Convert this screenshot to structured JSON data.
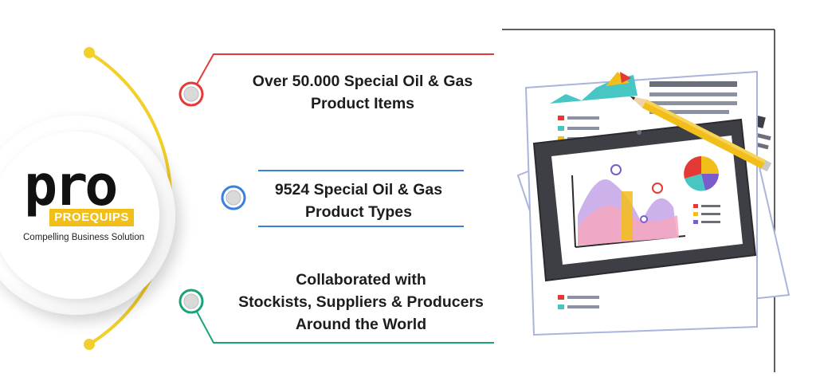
{
  "logo": {
    "wordmark": "pro",
    "badge": "PROEQUIPS",
    "tagline": "Compelling Business Solution"
  },
  "features": [
    {
      "lines": [
        "Over 50.000 Special Oil & Gas",
        "Product Items"
      ],
      "accent": "#e53935"
    },
    {
      "lines": [
        "9524  Special Oil & Gas",
        "Product Types"
      ],
      "accent": "#3b7fe0"
    },
    {
      "lines": [
        "Collaborated with",
        "Stockists, Suppliers & Producers",
        "Around the World"
      ],
      "accent": "#1aa37a"
    }
  ],
  "colors": {
    "timeline": "#f2cf2a",
    "brand_yellow": "#f2be1a",
    "tablet": "#3d3f44"
  },
  "illustration": {
    "icons": [
      "pencil-icon",
      "pie-chart-icon",
      "line-chart-icon",
      "tablet-icon",
      "document-icon"
    ]
  }
}
